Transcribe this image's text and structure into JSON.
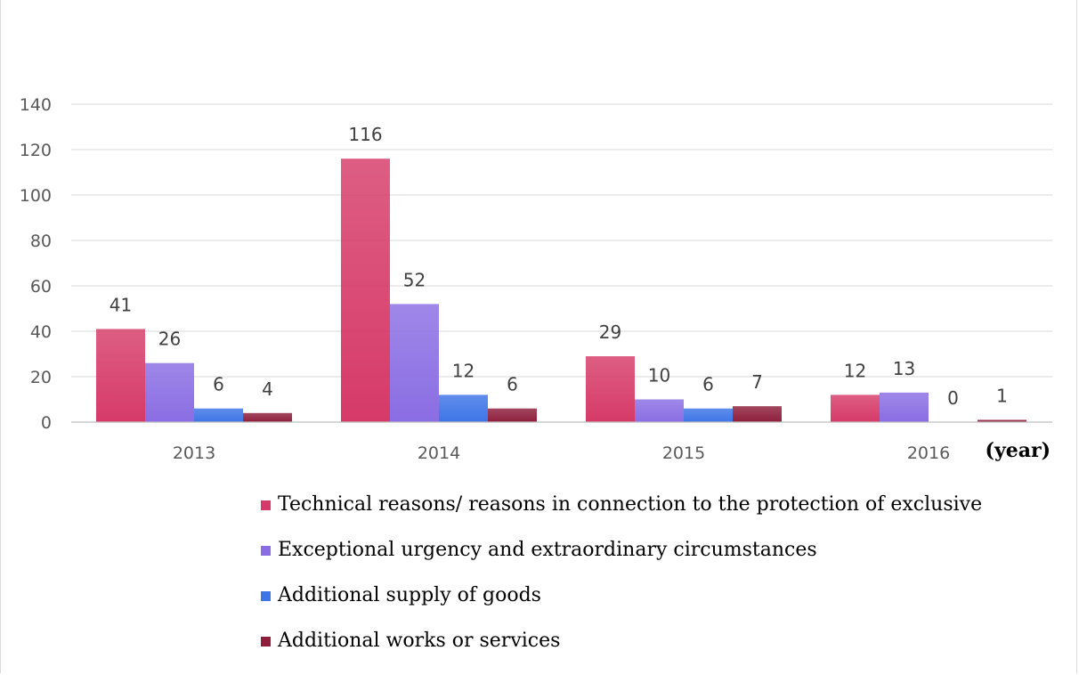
{
  "chart_data": {
    "type": "bar",
    "categories": [
      "2013",
      "2014",
      "2015",
      "2016"
    ],
    "x_unit_label": "(year)",
    "series": [
      {
        "name": "Technical reasons/ reasons in connection to the protection of exclusive",
        "color": "#d63a68",
        "values": [
          41,
          116,
          29,
          12
        ]
      },
      {
        "name": "Exceptional urgency and extraordinary circumstances",
        "color": "#8a6de3",
        "values": [
          26,
          52,
          10,
          13
        ]
      },
      {
        "name": "Additional supply of goods",
        "color": "#3d74e6",
        "values": [
          6,
          12,
          6,
          0
        ]
      },
      {
        "name": "Additional works or services",
        "color": "#8e1e3c",
        "values": [
          4,
          6,
          7,
          1
        ]
      }
    ],
    "yticks": [
      0,
      20,
      40,
      60,
      80,
      100,
      120,
      140
    ],
    "ylim": [
      0,
      140
    ],
    "grid": true,
    "legend_position": "bottom"
  }
}
